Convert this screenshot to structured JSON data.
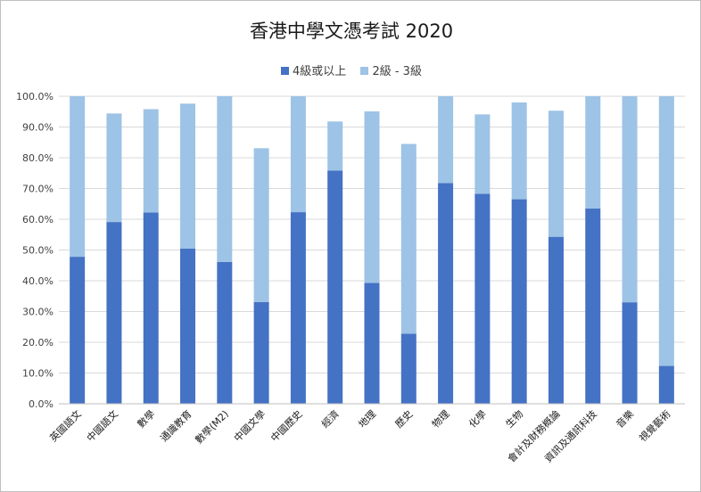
{
  "chart_data": {
    "type": "bar",
    "stacked": true,
    "title": "香港中學文憑考試 2020",
    "categories": [
      "英國語文",
      "中國語文",
      "數學",
      "通識教育",
      "數學(M2)",
      "中國文學",
      "中國歷史",
      "經濟",
      "地理",
      "歷史",
      "物理",
      "化學",
      "生物",
      "會計及財務概論",
      "資訊及通訊科技",
      "音樂",
      "視覺藝術"
    ],
    "series": [
      {
        "name": "4級或以上",
        "color": "#4472c4",
        "values": [
          47.8,
          59.1,
          62.2,
          50.5,
          46.1,
          33.1,
          62.3,
          75.8,
          39.3,
          22.8,
          71.8,
          68.3,
          66.5,
          54.3,
          63.5,
          33.0,
          12.3
        ]
      },
      {
        "name": "2級 - 3級",
        "color": "#9dc3e6",
        "values": [
          52.2,
          35.3,
          33.6,
          47.1,
          53.9,
          50.0,
          37.7,
          16.0,
          55.8,
          61.7,
          28.2,
          25.8,
          31.5,
          41.0,
          36.5,
          67.0,
          87.7
        ]
      }
    ],
    "ylim": [
      0,
      100
    ],
    "yticks": [
      "0.0%",
      "10.0%",
      "20.0%",
      "30.0%",
      "40.0%",
      "50.0%",
      "60.0%",
      "70.0%",
      "80.0%",
      "90.0%",
      "100.0%"
    ],
    "grid": true,
    "legend_position": "top-center"
  }
}
